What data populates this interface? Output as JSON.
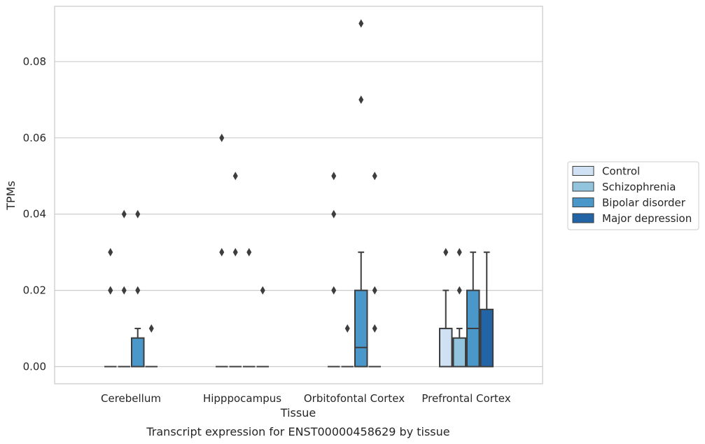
{
  "chart_data": {
    "type": "box",
    "title": "Transcript expression for ENST00000458629 by tissue",
    "xlabel": "Tissue",
    "ylabel": "TPMs",
    "ylim": [
      -0.0045,
      0.0945
    ],
    "yticks": [
      "0.00",
      "0.02",
      "0.04",
      "0.06",
      "0.08"
    ],
    "ytick_values": [
      0,
      0.02,
      0.04,
      0.06,
      0.08
    ],
    "grid": "horizontal",
    "legend_position": "right",
    "categories": [
      "Cerebellum",
      "Hipppocampus",
      "Orbitofontal Cortex",
      "Prefrontal Cortex"
    ],
    "series": [
      {
        "name": "Control",
        "color": "#cfe1f2",
        "boxes": [
          {
            "q1": 0,
            "median": 0,
            "q3": 0,
            "whisker_low": 0,
            "whisker_high": 0,
            "outliers": [
              0.03,
              0.02,
              0.02
            ]
          },
          {
            "q1": 0,
            "median": 0,
            "q3": 0,
            "whisker_low": 0,
            "whisker_high": 0,
            "outliers": [
              0.06,
              0.03
            ]
          },
          {
            "q1": 0,
            "median": 0,
            "q3": 0,
            "whisker_low": 0,
            "whisker_high": 0,
            "outliers": [
              0.05,
              0.04,
              0.02
            ]
          },
          {
            "q1": 0,
            "median": 0,
            "q3": 0.01,
            "whisker_low": 0,
            "whisker_high": 0.02,
            "outliers": [
              0.03
            ]
          }
        ]
      },
      {
        "name": "Schizophrenia",
        "color": "#93c4de",
        "boxes": [
          {
            "q1": 0,
            "median": 0,
            "q3": 0,
            "whisker_low": 0,
            "whisker_high": 0,
            "outliers": [
              0.04,
              0.02
            ]
          },
          {
            "q1": 0,
            "median": 0,
            "q3": 0,
            "whisker_low": 0,
            "whisker_high": 0,
            "outliers": [
              0.05,
              0.03
            ]
          },
          {
            "q1": 0,
            "median": 0,
            "q3": 0,
            "whisker_low": 0,
            "whisker_high": 0,
            "outliers": [
              0.01
            ]
          },
          {
            "q1": 0,
            "median": 0,
            "q3": 0.0075,
            "whisker_low": 0,
            "whisker_high": 0.01,
            "outliers": [
              0.03,
              0.02
            ]
          }
        ]
      },
      {
        "name": "Bipolar disorder",
        "color": "#4a98c9",
        "boxes": [
          {
            "q1": 0,
            "median": 0,
            "q3": 0.0075,
            "whisker_low": 0,
            "whisker_high": 0.01,
            "outliers": [
              0.04,
              0.02
            ]
          },
          {
            "q1": 0,
            "median": 0,
            "q3": 0,
            "whisker_low": 0,
            "whisker_high": 0,
            "outliers": [
              0.03
            ]
          },
          {
            "q1": 0,
            "median": 0.005,
            "q3": 0.02,
            "whisker_low": 0,
            "whisker_high": 0.03,
            "outliers": [
              0.09,
              0.07
            ]
          },
          {
            "q1": 0,
            "median": 0.01,
            "q3": 0.02,
            "whisker_low": 0,
            "whisker_high": 0.03,
            "outliers": []
          }
        ]
      },
      {
        "name": "Major depression",
        "color": "#2364a7",
        "boxes": [
          {
            "q1": 0,
            "median": 0,
            "q3": 0,
            "whisker_low": 0,
            "whisker_high": 0,
            "outliers": [
              0.01
            ]
          },
          {
            "q1": 0,
            "median": 0,
            "q3": 0,
            "whisker_low": 0,
            "whisker_high": 0,
            "outliers": [
              0.02
            ]
          },
          {
            "q1": 0,
            "median": 0,
            "q3": 0,
            "whisker_low": 0,
            "whisker_high": 0,
            "outliers": [
              0.05,
              0.02,
              0.01
            ]
          },
          {
            "q1": 0,
            "median": 0,
            "q3": 0.015,
            "whisker_low": 0,
            "whisker_high": 0.03,
            "outliers": []
          }
        ]
      }
    ]
  }
}
